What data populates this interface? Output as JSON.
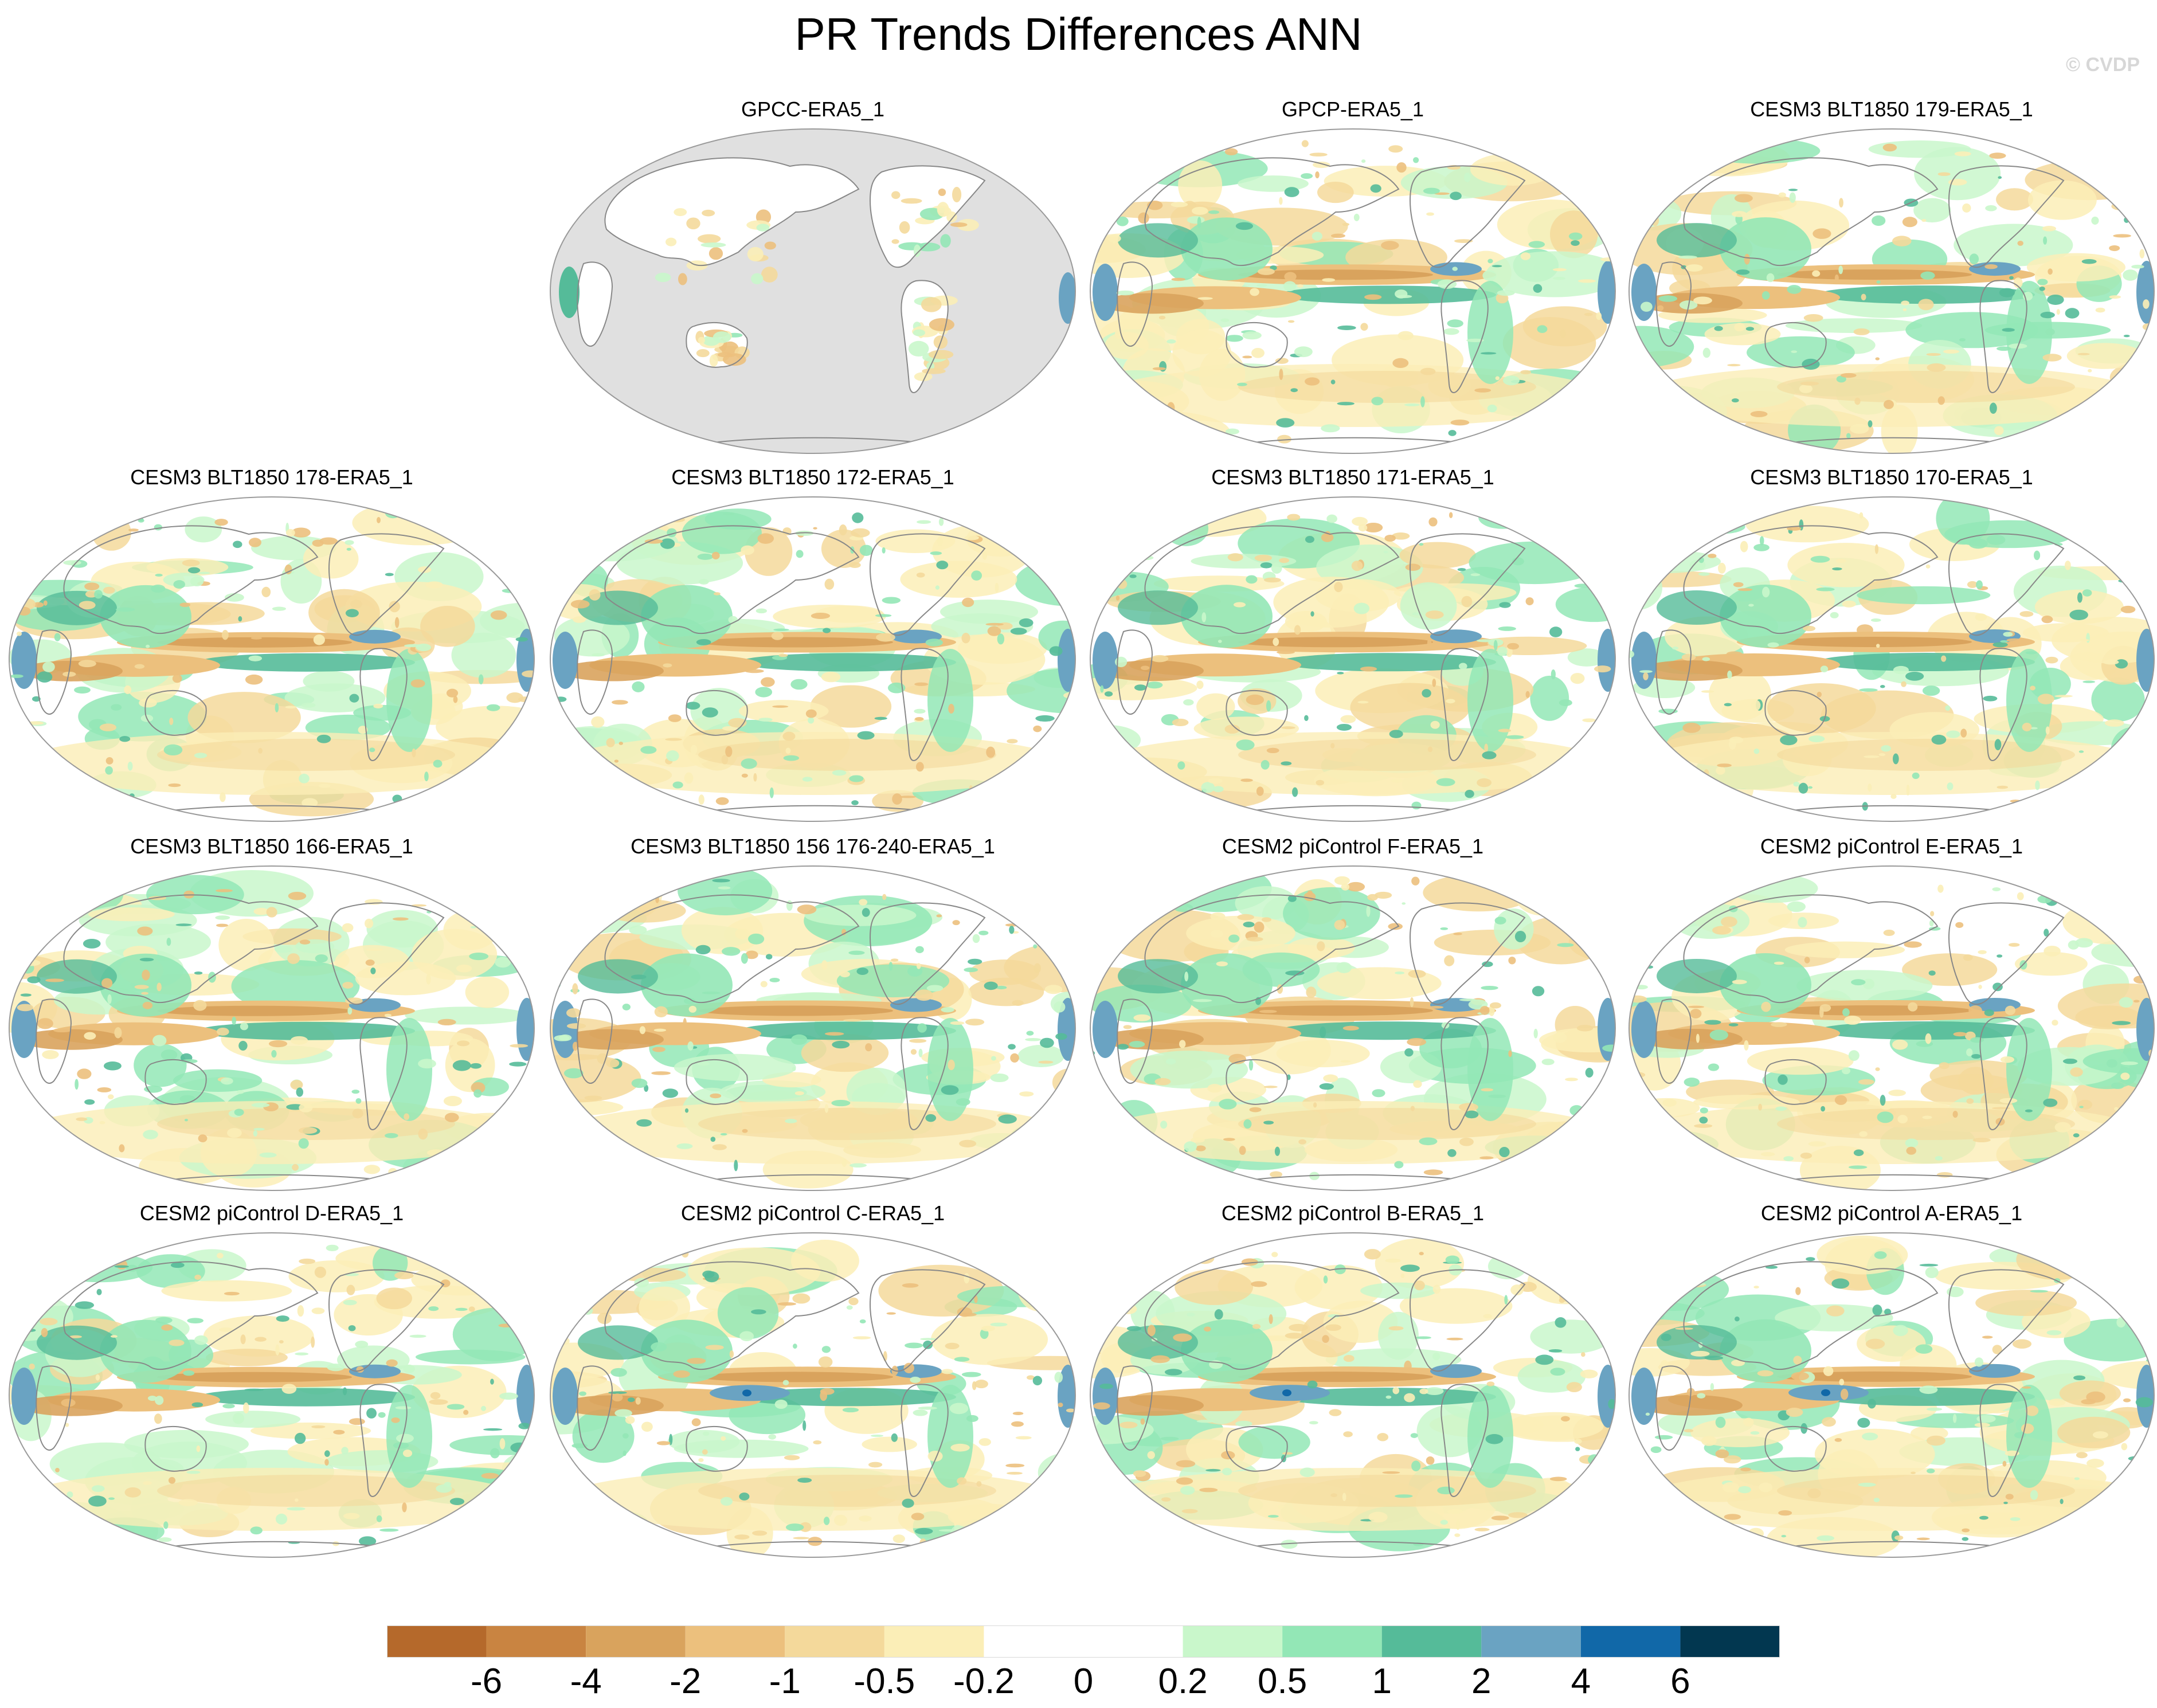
{
  "title": "PR Trends Differences ANN",
  "credit": "© CVDP",
  "panels": [
    {
      "label": "GPCC-ERA5_1",
      "land_only": true
    },
    {
      "label": "GPCP-ERA5_1",
      "land_only": false
    },
    {
      "label": "CESM3 BLT1850 179-ERA5_1",
      "land_only": false
    },
    {
      "label": "CESM3 BLT1850 178-ERA5_1",
      "land_only": false
    },
    {
      "label": "CESM3 BLT1850 172-ERA5_1",
      "land_only": false
    },
    {
      "label": "CESM3 BLT1850 171-ERA5_1",
      "land_only": false
    },
    {
      "label": "CESM3 BLT1850 170-ERA5_1",
      "land_only": false
    },
    {
      "label": "CESM3 BLT1850 166-ERA5_1",
      "land_only": false
    },
    {
      "label": "CESM3 BLT1850 156 176-240-ERA5_1",
      "land_only": false
    },
    {
      "label": "CESM2 piControl F-ERA5_1",
      "land_only": false
    },
    {
      "label": "CESM2 piControl E-ERA5_1",
      "land_only": false
    },
    {
      "label": "CESM2 piControl D-ERA5_1",
      "land_only": false
    },
    {
      "label": "CESM2 piControl C-ERA5_1",
      "land_only": false
    },
    {
      "label": "CESM2 piControl B-ERA5_1",
      "land_only": false
    },
    {
      "label": "CESM2 piControl A-ERA5_1",
      "land_only": false
    }
  ],
  "colorbar": {
    "ticks": [
      "-6",
      "-4",
      "-2",
      "-1",
      "-0.5",
      "-0.2",
      "0",
      "0.2",
      "0.5",
      "1",
      "2",
      "4",
      "6"
    ],
    "colors": [
      "#b5692b",
      "#c98441",
      "#d9a35d",
      "#ecc07d",
      "#f4d99b",
      "#fbeeb7",
      "#ffffff",
      "#ffffff",
      "#c9f7cb",
      "#93e7b6",
      "#55bb99",
      "#6aa3c2",
      "#1168a8",
      "#023750"
    ]
  },
  "palette": {
    "land_mask": "#e0e0e0",
    "coast": "#888888",
    "border": "#9a9a9a"
  }
}
